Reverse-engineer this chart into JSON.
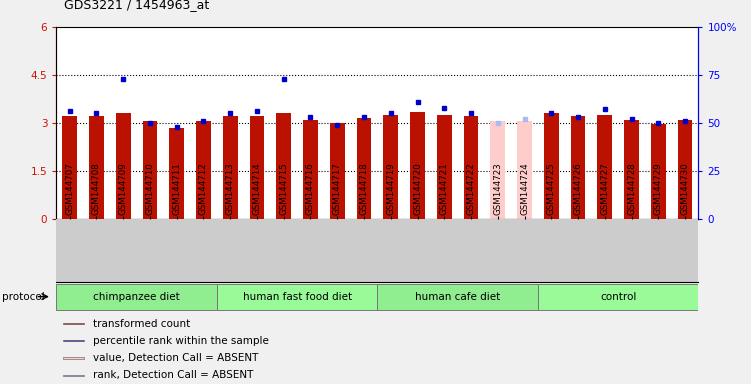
{
  "title": "GDS3221 / 1454963_at",
  "samples": [
    "GSM144707",
    "GSM144708",
    "GSM144709",
    "GSM144710",
    "GSM144711",
    "GSM144712",
    "GSM144713",
    "GSM144714",
    "GSM144715",
    "GSM144716",
    "GSM144717",
    "GSM144718",
    "GSM144719",
    "GSM144720",
    "GSM144721",
    "GSM144722",
    "GSM144723",
    "GSM144724",
    "GSM144725",
    "GSM144726",
    "GSM144727",
    "GSM144728",
    "GSM144729",
    "GSM144730"
  ],
  "red_values": [
    3.2,
    3.2,
    3.3,
    3.05,
    2.85,
    3.05,
    3.2,
    3.2,
    3.3,
    3.1,
    3.0,
    3.15,
    3.25,
    3.35,
    3.25,
    3.2,
    3.05,
    3.05,
    3.3,
    3.2,
    3.25,
    3.1,
    2.95,
    3.1
  ],
  "blue_values_pct": [
    56,
    55,
    73,
    50,
    48,
    51,
    55,
    56,
    73,
    53,
    49,
    53,
    55,
    61,
    58,
    55,
    50,
    52,
    55,
    53,
    57,
    52,
    50,
    51
  ],
  "absent_sample_indices": [
    16,
    17
  ],
  "groups": [
    {
      "label": "chimpanzee diet",
      "start": 0,
      "end": 6,
      "color": "#90EE90"
    },
    {
      "label": "human fast food diet",
      "start": 6,
      "end": 12,
      "color": "#98FB98"
    },
    {
      "label": "human cafe diet",
      "start": 12,
      "end": 18,
      "color": "#90EE90"
    },
    {
      "label": "control",
      "start": 18,
      "end": 24,
      "color": "#98FB98"
    }
  ],
  "ylim_left": [
    0,
    6
  ],
  "ylim_right": [
    0,
    100
  ],
  "yticks_left": [
    0,
    1.5,
    3.0,
    4.5,
    6
  ],
  "ytick_labels_left": [
    "0",
    "1.5",
    "3",
    "4.5",
    "6"
  ],
  "yticks_right_pct": [
    0,
    25,
    50,
    75,
    100
  ],
  "ytick_labels_right": [
    "0",
    "25",
    "50",
    "75",
    "100%"
  ],
  "bar_color_red": "#BB1100",
  "bar_color_absent_red": "#FFCCCC",
  "bar_color_blue": "#0000CC",
  "bar_color_absent_blue": "#AABBEE",
  "bar_width": 0.55,
  "plot_bg_color": "#FFFFFF",
  "grid_color": "#888888",
  "legend_items": [
    {
      "color": "#BB1100",
      "label": "transformed count"
    },
    {
      "color": "#0000CC",
      "label": "percentile rank within the sample"
    },
    {
      "color": "#FFCCCC",
      "label": "value, Detection Call = ABSENT"
    },
    {
      "color": "#AABBEE",
      "label": "rank, Detection Call = ABSENT"
    }
  ]
}
